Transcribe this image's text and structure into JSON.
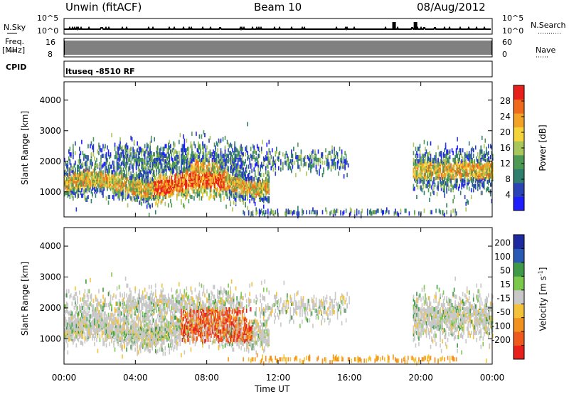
{
  "header": {
    "title_left": "Unwin (fitACF)",
    "title_center": "Beam 10",
    "title_right": "08/Aug/2012"
  },
  "strips": {
    "nsky_label": "N.Sky",
    "nsky_top": "10^5",
    "nsky_bottom": "10^0",
    "nsearch_label": "N.Search",
    "nsearch_top": "10^5",
    "nsearch_bottom": "10^0",
    "freq_label": "Freq.",
    "freq_unit": "[MHz]",
    "freq_top": "16",
    "freq_bottom": "8",
    "nave_label": "Nave",
    "nave_top": "60",
    "nave_bottom": "0",
    "cpid_label": "CPID",
    "cpid_text": "ltuseq -8510 RF"
  },
  "colors": {
    "power": [
      "#1e1eff",
      "#2a44b8",
      "#2f7e6e",
      "#4e9a55",
      "#a9c65a",
      "#f4d43a",
      "#f2a326",
      "#ef6a1c",
      "#e8201c"
    ],
    "velocity": [
      "#e8201c",
      "#ef5a1c",
      "#f29020",
      "#f4c13a",
      "#c8c8c8",
      "#7cc84a",
      "#3e9a48",
      "#2a5ab4",
      "#1e2aa0"
    ]
  },
  "chart_data": [
    {
      "type": "heatmap",
      "name": "power",
      "ylabel": "Slant Range [km]",
      "ylim": [
        180,
        4600
      ],
      "y_ticks": [
        1000,
        2000,
        3000,
        4000
      ],
      "xlim": [
        0,
        24
      ],
      "colorbar_label": "Power [dB]",
      "colorbar_ticks": [
        4,
        8,
        12,
        16,
        20,
        24,
        28
      ],
      "colorbar_range": [
        0,
        32
      ]
    },
    {
      "type": "heatmap",
      "name": "velocity",
      "ylabel": "Slant Range [km]",
      "ylim": [
        180,
        4600
      ],
      "y_ticks": [
        1000,
        2000,
        3000,
        4000
      ],
      "xlim": [
        0,
        24
      ],
      "colorbar_label": "Velocity [m s",
      "colorbar_label_sup": "-1",
      "colorbar_label_end": "]",
      "colorbar_ticks": [
        "200",
        "100",
        "50",
        "15",
        "-15",
        "-50",
        "-100",
        "-200"
      ]
    }
  ],
  "x_axis": {
    "label": "Time UT",
    "ticks": [
      "00:00",
      "04:00",
      "08:00",
      "12:00",
      "16:00",
      "20:00",
      "00:00"
    ],
    "tick_hours": [
      0,
      4,
      8,
      12,
      16,
      20,
      24
    ]
  }
}
